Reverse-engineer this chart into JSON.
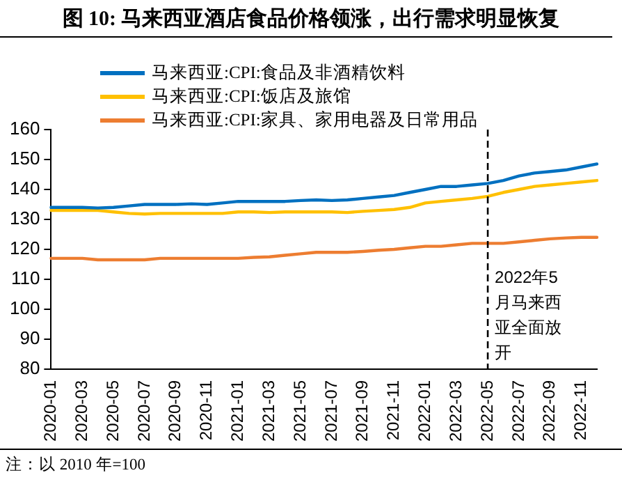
{
  "chart_data": {
    "type": "line",
    "title": "图 10: 马来西亚酒店食品价格领涨，出行需求明显恢复",
    "categories": [
      "2020-01",
      null,
      "2020-03",
      null,
      "2020-05",
      null,
      "2020-07",
      null,
      "2020-09",
      null,
      "2020-11",
      null,
      "2021-01",
      null,
      "2021-03",
      null,
      "2021-05",
      null,
      "2021-07",
      null,
      "2021-09",
      null,
      "2021-11",
      null,
      "2022-01",
      null,
      "2022-03",
      null,
      "2022-05",
      null,
      "2022-07",
      null,
      "2022-09",
      null,
      "2022-11",
      null
    ],
    "series": [
      {
        "name": "马来西亚:CPI:食品及非酒精饮料",
        "color": "#0070c0",
        "values": [
          134,
          134,
          134,
          133.8,
          134,
          134.5,
          135,
          135,
          135,
          135.2,
          135,
          135.5,
          136,
          136,
          136,
          136,
          136.3,
          136.5,
          136.3,
          136.5,
          137,
          137.5,
          138,
          139,
          140,
          141,
          141,
          141.5,
          142,
          143,
          144.5,
          145.5,
          146,
          146.5,
          147.5,
          148.5
        ]
      },
      {
        "name": "马来西亚:CPI:饭店及旅馆",
        "color": "#ffc000",
        "values": [
          133,
          133,
          133,
          133,
          132.5,
          132,
          131.8,
          132,
          132,
          132,
          132,
          132,
          132.5,
          132.5,
          132.3,
          132.5,
          132.5,
          132.5,
          132.5,
          132.3,
          132.7,
          133,
          133.3,
          134,
          135.5,
          136,
          136.5,
          137,
          137.7,
          139,
          140,
          141,
          141.5,
          142,
          142.5,
          143
        ]
      },
      {
        "name": "马来西亚:CPI:家具、家用电器及日常用品",
        "color": "#ed7d31",
        "values": [
          117,
          117,
          117,
          116.5,
          116.5,
          116.5,
          116.5,
          117,
          117,
          117,
          117,
          117,
          117,
          117.3,
          117.5,
          118,
          118.5,
          119,
          119,
          119,
          119.3,
          119.7,
          120,
          120.5,
          121,
          121,
          121.5,
          122,
          122,
          122,
          122.5,
          123,
          123.5,
          123.8,
          124,
          124
        ]
      }
    ],
    "ylim": [
      80,
      160
    ],
    "yticks": [
      80,
      90,
      100,
      110,
      120,
      130,
      140,
      150,
      160
    ],
    "grid": false,
    "legend": "top left",
    "marker": "none",
    "line_style": "solid",
    "ref_lines": [
      {
        "axis": "x",
        "value": "2022-05",
        "label": "2022年5月马来西亚全面放开",
        "color": "#000000",
        "line_style": "dashed"
      }
    ],
    "annotations": [
      "注：以 2010 年=100"
    ]
  }
}
